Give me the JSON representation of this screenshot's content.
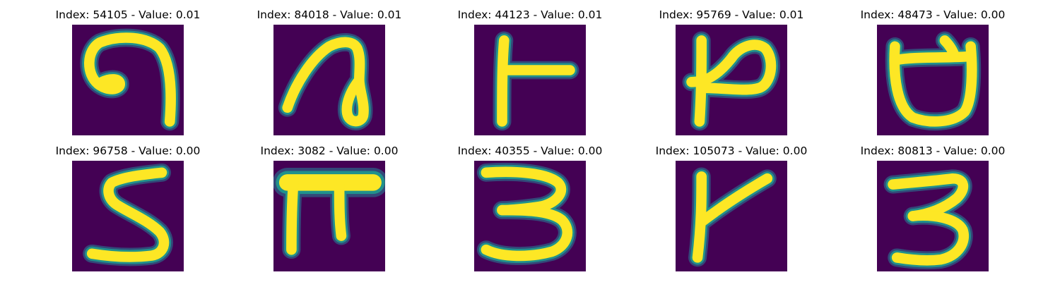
{
  "colors": {
    "background": "#440154",
    "stroke_core": "#fde725",
    "stroke_edge": "#21918c",
    "stroke_halo": "#2a6f8e"
  },
  "panels": [
    {
      "title": "Index: 54105 - Value: 0.01",
      "glyph": "looped-hook"
    },
    {
      "title": "Index: 84018 - Value: 0.01",
      "glyph": "loop-stroke"
    },
    {
      "title": "Index: 44123 - Value: 0.01",
      "glyph": "vertical-with-bar"
    },
    {
      "title": "Index: 95769 - Value: 0.01",
      "glyph": "vertical-with-hook"
    },
    {
      "title": "Index: 48473 - Value: 0.00",
      "glyph": "rounded-cup"
    },
    {
      "title": "Index: 96758 - Value: 0.00",
      "glyph": "five"
    },
    {
      "title": "Index: 3082 - Value: 0.00",
      "glyph": "pi"
    },
    {
      "title": "Index: 40355 - Value: 0.00",
      "glyph": "three"
    },
    {
      "title": "Index: 105073 - Value: 0.00",
      "glyph": "vertical-with-diagonal"
    },
    {
      "title": "Index: 80813 - Value: 0.00",
      "glyph": "three"
    }
  ]
}
